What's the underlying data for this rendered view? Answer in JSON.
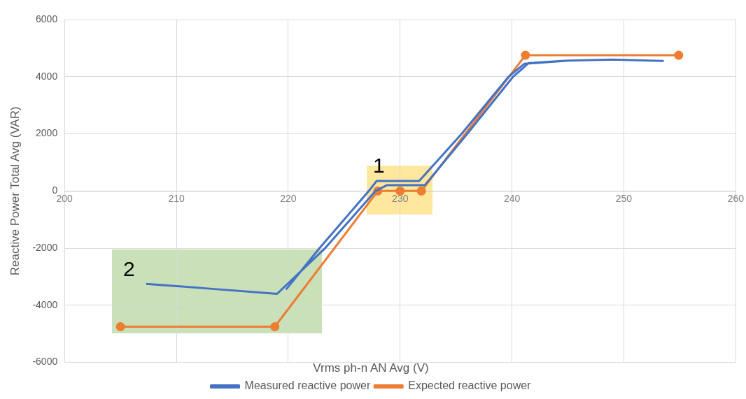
{
  "chart_data": {
    "type": "line",
    "xlabel": "Vrms ph-n AN Avg (V)",
    "ylabel": "Reactive Power Total Avg (VAR)",
    "xlim": [
      200,
      260
    ],
    "xticks": [
      200,
      210,
      220,
      230,
      240,
      250,
      260
    ],
    "ylim": [
      -6000,
      6000
    ],
    "yticks": [
      -6000,
      -4000,
      -2000,
      0,
      2000,
      4000,
      6000
    ],
    "grid": true,
    "legend": "bottom",
    "series": [
      {
        "name": "Measured reactive power",
        "color": "#4472c4",
        "marker": "none",
        "x": [
          207.3,
          213,
          219,
          223.3,
          227.8,
          228.8,
          232.2,
          236,
          240.1,
          241.5,
          245,
          249,
          253.5,
          249,
          245,
          241.1,
          239.7,
          235.5,
          231.7,
          227.9,
          227.2,
          222.8,
          219.8
        ],
        "values": [
          -3250,
          -3420,
          -3600,
          -2000,
          0,
          200,
          200,
          2000,
          4000,
          4480,
          4560,
          4600,
          4550,
          4600,
          4560,
          4450,
          4000,
          2000,
          350,
          350,
          0,
          -2000,
          -3450
        ]
      },
      {
        "name": "Expected reactive power",
        "color": "#ed7d31",
        "marker": "circle",
        "x": [
          205,
          218.8,
          228,
          230,
          231.9,
          241.2,
          254.9
        ],
        "values": [
          -4750,
          -4750,
          0,
          0,
          0,
          4750,
          4750
        ]
      }
    ],
    "annotations": [
      "1",
      "2"
    ]
  }
}
